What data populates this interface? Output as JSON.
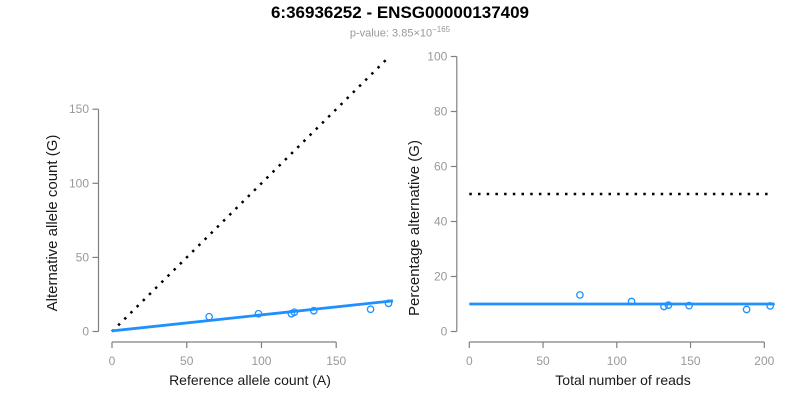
{
  "header": {
    "title": "6:36936252 - ENSG00000137409",
    "pvalue_prefix": "p-value: 3.85×10",
    "pvalue_exponent": "−165"
  },
  "colors": {
    "accent_blue": "#1e90ff",
    "reference_line_black": "#000000",
    "axis_line_gray": "#808080",
    "tick_label_gray": "#999999",
    "axis_title_dark": "#1a1a1a",
    "background": "#ffffff"
  },
  "chart_data": [
    {
      "type": "scatter",
      "name": "allele-counts-plot",
      "title": "",
      "xlabel": "Reference allele count (A)",
      "ylabel": "Alternative allele count (G)",
      "xticks": [
        0,
        50,
        100,
        150
      ],
      "yticks": [
        0,
        50,
        100,
        150
      ],
      "xlim": [
        0,
        188
      ],
      "ylim": [
        0,
        188
      ],
      "grid": false,
      "legend": "none",
      "points": [
        [
          65,
          10
        ],
        [
          98,
          12
        ],
        [
          120,
          12
        ],
        [
          122,
          13
        ],
        [
          135,
          14
        ],
        [
          173,
          15
        ],
        [
          185,
          19
        ]
      ],
      "lines": [
        {
          "name": "identity-line",
          "style": "dotted",
          "color": "#000000",
          "x1": 0,
          "y1": 0,
          "x2": 186,
          "y2": 186
        },
        {
          "name": "fit-line",
          "style": "solid",
          "color": "#1e90ff",
          "x1": 0,
          "y1": 0.4,
          "x2": 188,
          "y2": 20.7
        }
      ]
    },
    {
      "type": "scatter",
      "name": "percentage-plot",
      "title": "",
      "xlabel": "Total number of reads",
      "ylabel": "Percentage alternative (G)",
      "xticks": [
        0,
        50,
        100,
        150,
        200
      ],
      "yticks": [
        0,
        20,
        40,
        60,
        80,
        100
      ],
      "xlim": [
        0,
        207
      ],
      "ylim": [
        0,
        100
      ],
      "grid": false,
      "legend": "none",
      "points": [
        [
          75,
          13.3
        ],
        [
          110,
          10.9
        ],
        [
          132,
          9.1
        ],
        [
          135,
          9.6
        ],
        [
          149,
          9.4
        ],
        [
          188,
          8.0
        ],
        [
          204,
          9.3
        ]
      ],
      "lines": [
        {
          "name": "expected-50pct-line",
          "style": "dotted",
          "color": "#000000",
          "x1": 0,
          "y1": 50,
          "x2": 203,
          "y2": 50
        },
        {
          "name": "mean-percentage-line",
          "style": "solid",
          "color": "#1e90ff",
          "x1": 0,
          "y1": 10,
          "x2": 207,
          "y2": 10
        }
      ]
    }
  ]
}
